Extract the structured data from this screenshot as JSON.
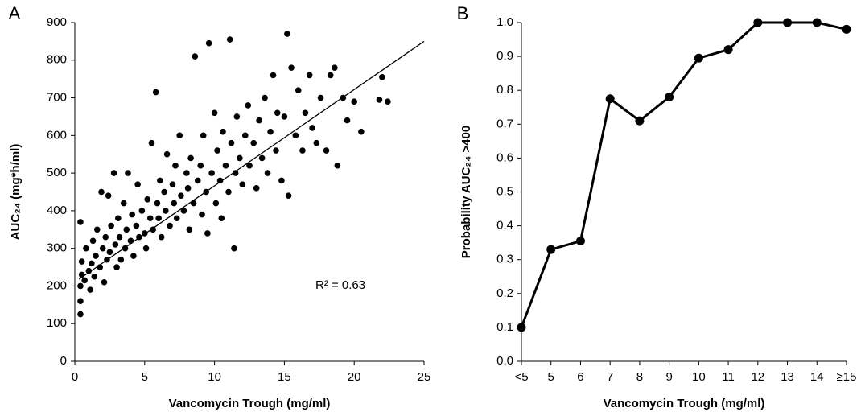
{
  "chart_data": [
    {
      "type": "scatter",
      "panel_label": "A",
      "x_label": "Vancomycin Trough (mg/ml)",
      "y_label": "AUC₂₄ (mg*h/ml)",
      "annotation": "R² = 0.63",
      "color": "#000000",
      "xlim": [
        0,
        25
      ],
      "xticks": [
        0,
        5,
        10,
        15,
        20,
        25
      ],
      "ylim": [
        0,
        900
      ],
      "yticks": [
        0,
        100,
        200,
        300,
        400,
        500,
        600,
        700,
        800,
        900
      ],
      "trendline": {
        "x": [
          0.3,
          25
        ],
        "y": [
          218,
          850
        ]
      },
      "x": [
        0.4,
        0.4,
        0.4,
        0.5,
        0.5,
        0.4,
        0.7,
        0.8,
        1.0,
        1.1,
        1.2,
        1.3,
        1.4,
        1.5,
        1.6,
        1.8,
        1.9,
        2.0,
        2.1,
        2.2,
        2.3,
        2.4,
        2.5,
        2.6,
        2.8,
        2.9,
        3.0,
        3.1,
        3.2,
        3.3,
        3.5,
        3.6,
        3.7,
        3.8,
        4.0,
        4.1,
        4.2,
        4.4,
        4.5,
        4.6,
        4.8,
        5.0,
        5.1,
        5.2,
        5.4,
        5.5,
        5.6,
        5.8,
        5.9,
        6.0,
        6.1,
        6.2,
        6.4,
        6.5,
        6.6,
        6.8,
        7.0,
        7.1,
        7.2,
        7.3,
        7.5,
        7.6,
        7.8,
        8.0,
        8.1,
        8.2,
        8.3,
        8.5,
        8.6,
        8.8,
        9.0,
        9.1,
        9.2,
        9.4,
        9.5,
        9.6,
        9.8,
        10.0,
        10.1,
        10.2,
        10.4,
        10.5,
        10.6,
        10.8,
        11.0,
        11.1,
        11.2,
        11.4,
        11.5,
        11.6,
        11.8,
        12.0,
        12.2,
        12.4,
        12.5,
        12.8,
        13.0,
        13.2,
        13.4,
        13.6,
        13.8,
        14.0,
        14.2,
        14.4,
        14.5,
        14.8,
        15.0,
        15.2,
        15.3,
        15.5,
        15.8,
        16.0,
        16.3,
        16.5,
        16.8,
        17.0,
        17.3,
        17.6,
        18.0,
        18.3,
        18.6,
        18.8,
        19.2,
        19.5,
        20.0,
        20.5,
        21.8,
        22.0,
        22.4
      ],
      "values": [
        125,
        160,
        200,
        230,
        265,
        370,
        215,
        300,
        240,
        190,
        260,
        320,
        225,
        280,
        350,
        250,
        450,
        300,
        210,
        330,
        270,
        440,
        290,
        360,
        500,
        310,
        250,
        380,
        330,
        270,
        420,
        300,
        350,
        500,
        320,
        390,
        280,
        360,
        470,
        330,
        400,
        340,
        300,
        430,
        380,
        580,
        350,
        715,
        420,
        380,
        480,
        330,
        450,
        400,
        550,
        360,
        470,
        420,
        520,
        380,
        600,
        440,
        400,
        500,
        460,
        350,
        540,
        420,
        810,
        480,
        520,
        390,
        600,
        450,
        340,
        845,
        500,
        660,
        420,
        560,
        480,
        380,
        610,
        520,
        450,
        855,
        580,
        300,
        500,
        650,
        540,
        470,
        600,
        680,
        520,
        580,
        460,
        640,
        540,
        700,
        500,
        610,
        760,
        560,
        660,
        480,
        650,
        870,
        440,
        780,
        600,
        720,
        560,
        660,
        760,
        620,
        580,
        700,
        560,
        760,
        780,
        520,
        700,
        640,
        690,
        610,
        695,
        755,
        690
      ]
    },
    {
      "type": "line",
      "panel_label": "B",
      "x_label": "Vancomycin Trough (mg/ml)",
      "y_label": "Probability  AUC₂₄ >400",
      "color": "#000000",
      "categories": [
        "<5",
        "5",
        "6",
        "7",
        "8",
        "9",
        "10",
        "11",
        "12",
        "13",
        "14",
        "≥15"
      ],
      "values": [
        0.1,
        0.33,
        0.355,
        0.775,
        0.71,
        0.78,
        0.895,
        0.92,
        1.0,
        1.0,
        1.0,
        0.98
      ],
      "ylim": [
        0,
        1
      ],
      "yticks": [
        {
          "value": 0,
          "label": "0.0"
        },
        0.1,
        0.2,
        0.3,
        0.4,
        0.5,
        0.6,
        0.7,
        0.8,
        0.9,
        {
          "value": 1,
          "label": "1.0"
        }
      ]
    }
  ]
}
